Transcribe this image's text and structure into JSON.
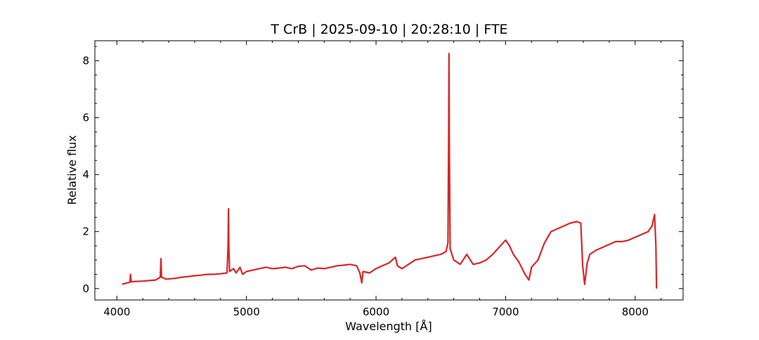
{
  "chart_data": {
    "type": "line",
    "title": "T CrB | 2025-09-10 | 20:28:10 | FTE",
    "xlabel": "Wavelength [Å]",
    "ylabel": "Relative flux",
    "xlim": [
      3830,
      8370
    ],
    "ylim": [
      -0.4,
      8.7
    ],
    "xticks": [
      4000,
      5000,
      6000,
      7000,
      8000
    ],
    "yticks": [
      0,
      2,
      4,
      6,
      8
    ],
    "grid": false,
    "series": [
      {
        "color": "#d62728",
        "x": [
          4040,
          4080,
          4100,
          4105,
          4110,
          4150,
          4200,
          4250,
          4300,
          4335,
          4340,
          4345,
          4380,
          4450,
          4500,
          4550,
          4600,
          4650,
          4700,
          4750,
          4800,
          4850,
          4858,
          4861,
          4864,
          4870,
          4900,
          4920,
          4950,
          4970,
          5000,
          5050,
          5100,
          5150,
          5200,
          5250,
          5300,
          5350,
          5400,
          5450,
          5500,
          5550,
          5600,
          5650,
          5700,
          5750,
          5800,
          5850,
          5875,
          5890,
          5900,
          5950,
          6000,
          6050,
          6100,
          6150,
          6165,
          6200,
          6250,
          6300,
          6350,
          6400,
          6450,
          6500,
          6540,
          6555,
          6560,
          6563,
          6566,
          6572,
          6600,
          6650,
          6700,
          6750,
          6800,
          6850,
          6900,
          6950,
          7000,
          7030,
          7060,
          7100,
          7150,
          7180,
          7200,
          7250,
          7300,
          7350,
          7400,
          7450,
          7500,
          7550,
          7580,
          7595,
          7610,
          7630,
          7650,
          7700,
          7750,
          7800,
          7850,
          7900,
          7950,
          8000,
          8050,
          8100,
          8130,
          8150,
          8160,
          8165
        ],
        "y": [
          0.15,
          0.2,
          0.22,
          0.5,
          0.24,
          0.25,
          0.26,
          0.28,
          0.3,
          0.4,
          1.05,
          0.4,
          0.33,
          0.36,
          0.4,
          0.42,
          0.45,
          0.47,
          0.5,
          0.5,
          0.52,
          0.55,
          1.5,
          2.8,
          1.5,
          0.6,
          0.7,
          0.55,
          0.75,
          0.5,
          0.6,
          0.65,
          0.7,
          0.75,
          0.7,
          0.72,
          0.75,
          0.7,
          0.78,
          0.8,
          0.65,
          0.72,
          0.7,
          0.75,
          0.8,
          0.82,
          0.85,
          0.8,
          0.55,
          0.2,
          0.6,
          0.55,
          0.7,
          0.8,
          0.9,
          1.1,
          0.8,
          0.7,
          0.85,
          1.0,
          1.05,
          1.1,
          1.15,
          1.2,
          1.3,
          1.6,
          5.0,
          8.25,
          5.0,
          1.4,
          1.0,
          0.85,
          1.2,
          0.85,
          0.9,
          1.0,
          1.2,
          1.45,
          1.7,
          1.5,
          1.2,
          0.95,
          0.5,
          0.3,
          0.75,
          1.0,
          1.6,
          2.0,
          2.1,
          2.2,
          2.3,
          2.35,
          2.3,
          0.8,
          0.15,
          0.9,
          1.2,
          1.35,
          1.45,
          1.55,
          1.65,
          1.65,
          1.7,
          1.8,
          1.9,
          2.0,
          2.2,
          2.6,
          1.5,
          0.0
        ]
      }
    ]
  }
}
